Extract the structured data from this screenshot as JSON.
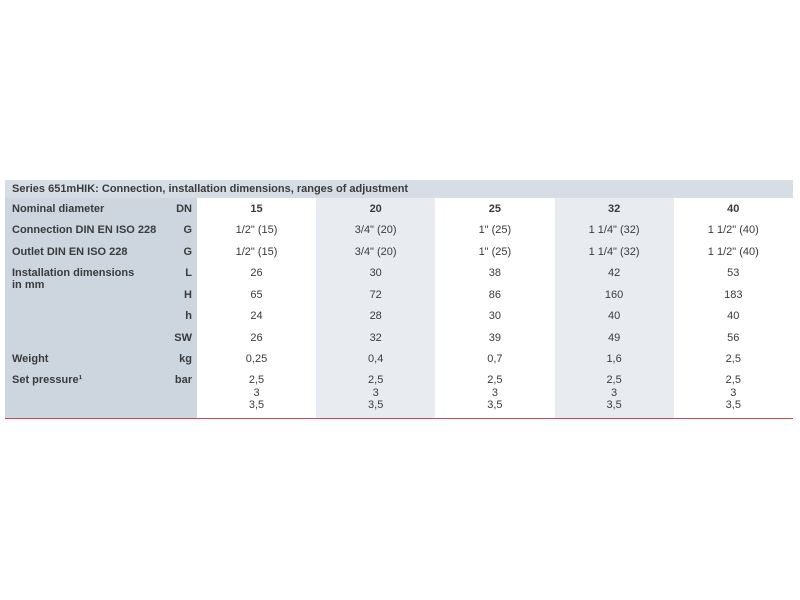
{
  "table": {
    "title": "Series 651mHIK: Connection, installation dimensions, ranges of adjustment",
    "header": {
      "label": "Nominal diameter",
      "unit": "DN",
      "values": [
        "15",
        "20",
        "25",
        "32",
        "40"
      ]
    },
    "rows": [
      {
        "label": "Connection DIN EN ISO 228",
        "unit": "G",
        "values": [
          "1/2\" (15)",
          "3/4\" (20)",
          "1\" (25)",
          "1 1/4\" (32)",
          "1 1/2\" (40)"
        ]
      },
      {
        "label": "Outlet DIN EN ISO 228",
        "unit": "G",
        "values": [
          "1/2\" (15)",
          "3/4\" (20)",
          "1\" (25)",
          "1 1/4\" (32)",
          "1 1/2\" (40)"
        ]
      },
      {
        "label": "Installation dimensions in mm",
        "unit": "L",
        "values": [
          "26",
          "30",
          "38",
          "42",
          "53"
        ]
      },
      {
        "unit": "H",
        "values": [
          "65",
          "72",
          "86",
          "160",
          "183"
        ]
      },
      {
        "unit": "h",
        "values": [
          "24",
          "28",
          "30",
          "40",
          "40"
        ]
      },
      {
        "unit": "SW",
        "values": [
          "26",
          "32",
          "39",
          "49",
          "56"
        ]
      },
      {
        "label": "Weight",
        "unit": "kg",
        "values": [
          "0,25",
          "0,4",
          "0,7",
          "1,6",
          "2,5"
        ]
      },
      {
        "label": "Set pressure¹",
        "unit": "bar",
        "values": [
          [
            "2,5",
            "3",
            "3,5"
          ],
          [
            "2,5",
            "3",
            "3,5"
          ],
          [
            "2,5",
            "3",
            "3,5"
          ],
          [
            "2,5",
            "3",
            "3,5"
          ],
          [
            "2,5",
            "3",
            "3,5"
          ]
        ]
      }
    ]
  }
}
